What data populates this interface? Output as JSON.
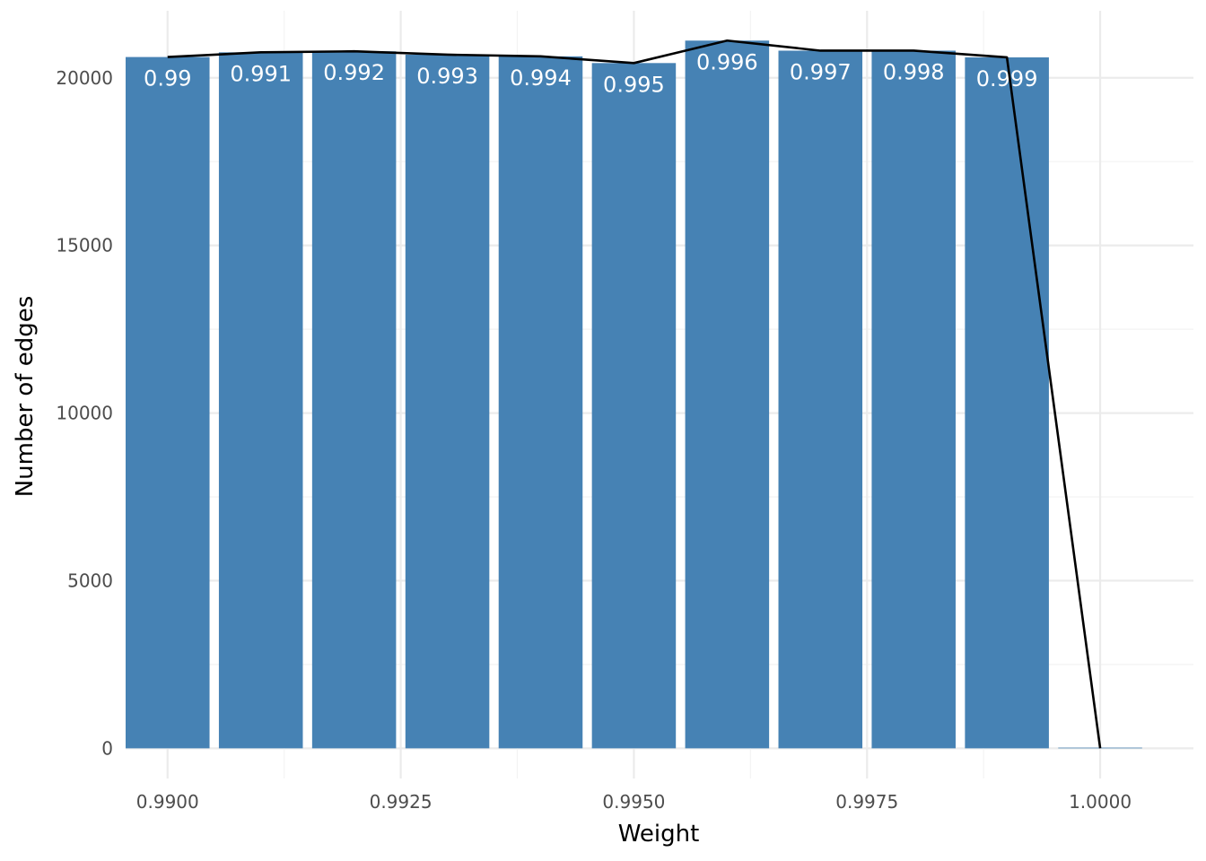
{
  "chart_data": {
    "type": "bar",
    "xlabel": "Weight",
    "ylabel": "Number of edges",
    "xlim": [
      0.98955,
      1.001
    ],
    "ylim": [
      -900,
      22000
    ],
    "x_ticks": [
      0.99,
      0.9925,
      0.995,
      0.9975,
      1.0
    ],
    "x_tick_labels": [
      "0.9900",
      "0.9925",
      "0.9950",
      "0.9975",
      "1.0000"
    ],
    "y_ticks": [
      0,
      5000,
      10000,
      15000,
      20000
    ],
    "y_tick_labels": [
      "0",
      "5000",
      "10000",
      "15000",
      "20000"
    ],
    "x": [
      0.99,
      0.991,
      0.992,
      0.993,
      0.994,
      0.995,
      0.996,
      0.997,
      0.998,
      0.999,
      1.0
    ],
    "values": [
      20620,
      20760,
      20790,
      20690,
      20640,
      20440,
      21110,
      20810,
      20810,
      20610,
      20
    ],
    "bar_labels": [
      "0.99",
      "0.991",
      "0.992",
      "0.993",
      "0.994",
      "0.995",
      "0.996",
      "0.997",
      "0.998",
      "0.999",
      ""
    ],
    "line_values": [
      20620,
      20760,
      20790,
      20690,
      20640,
      20440,
      21110,
      20810,
      20810,
      20610,
      0
    ],
    "bar_color": "#4682B4",
    "line_color": "#000000",
    "grid": true,
    "legend": "none"
  }
}
